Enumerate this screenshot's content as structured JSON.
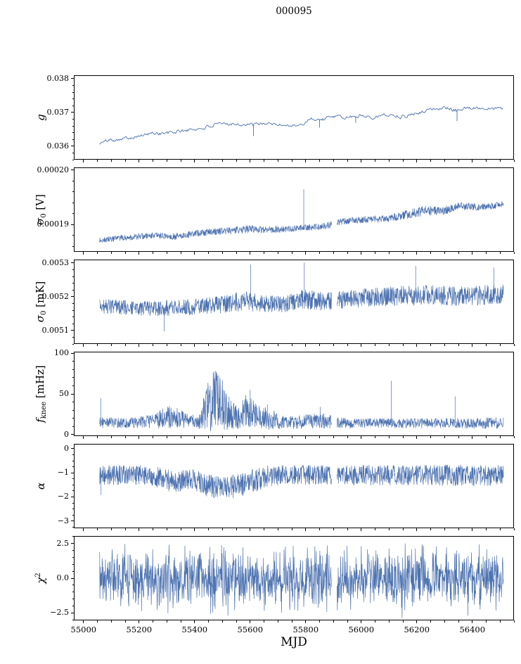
{
  "title": "000095",
  "accent_color": "#4c72b0",
  "axis_color": "#000000",
  "chart_data": {
    "type": "line",
    "title": "000095",
    "legend": "none",
    "grid": false,
    "x_axis": {
      "label": "MJD",
      "lim": [
        54965,
        56550
      ],
      "ticks": [
        55000,
        55200,
        55400,
        55600,
        55800,
        56000,
        56200,
        56400
      ],
      "tick_labels": [
        "55000",
        "55200",
        "55400",
        "55600",
        "55800",
        "56000",
        "56200",
        "56400"
      ],
      "minor_step": 50,
      "data_range": [
        55058,
        56512
      ]
    },
    "panels": [
      {
        "id": "g",
        "ylabel": {
          "sym": "g",
          "sub": "",
          "sup": "",
          "unit": ""
        },
        "ylim": [
          0.0356,
          0.0381
        ],
        "yticks": [
          {
            "v": 0.038,
            "label": "0.038"
          },
          {
            "v": 0.037,
            "label": "0.037"
          },
          {
            "v": 0.036,
            "label": "0.036"
          }
        ],
        "yminor_step": 0.0002,
        "style": {
          "noise": "walk",
          "step": 3,
          "linewidth": 0.9,
          "seed": 101
        },
        "envelope": [
          [
            55058,
            0.03608,
            5e-05
          ],
          [
            55090,
            0.03618,
            6e-05
          ],
          [
            55140,
            0.03623,
            5e-05
          ],
          [
            55200,
            0.0363,
            5e-05
          ],
          [
            55260,
            0.0364,
            7e-05
          ],
          [
            55300,
            0.03637,
            8e-05
          ],
          [
            55350,
            0.03645,
            6e-05
          ],
          [
            55420,
            0.03652,
            6e-05
          ],
          [
            55480,
            0.03663,
            6e-05
          ],
          [
            55530,
            0.03668,
            6e-05
          ],
          [
            55575,
            0.03664,
            6e-05
          ],
          [
            55615,
            0.03662,
            7e-05
          ],
          [
            55655,
            0.03668,
            5e-05
          ],
          [
            55700,
            0.03664,
            5e-05
          ],
          [
            55745,
            0.03662,
            5e-05
          ],
          [
            55785,
            0.0366,
            7e-05
          ],
          [
            55815,
            0.03683,
            6e-05
          ],
          [
            55855,
            0.03678,
            7e-05
          ],
          [
            55895,
            0.03688,
            5e-05
          ],
          [
            55945,
            0.03684,
            6e-05
          ],
          [
            56000,
            0.03691,
            6e-05
          ],
          [
            56050,
            0.03687,
            7e-05
          ],
          [
            56100,
            0.03694,
            6e-05
          ],
          [
            56150,
            0.03687,
            7e-05
          ],
          [
            56200,
            0.03699,
            6e-05
          ],
          [
            56255,
            0.03709,
            5e-05
          ],
          [
            56300,
            0.03716,
            6e-05
          ],
          [
            56335,
            0.03704,
            8e-05
          ],
          [
            56375,
            0.03712,
            6e-05
          ],
          [
            56430,
            0.03714,
            5e-05
          ],
          [
            56512,
            0.03711,
            5e-05
          ]
        ],
        "spikes": [
          [
            55612,
            0.0363
          ],
          [
            55850,
            0.03655
          ],
          [
            55980,
            0.03669
          ],
          [
            56345,
            0.03674
          ]
        ],
        "gaps": []
      },
      {
        "id": "sigma0-V",
        "ylabel": {
          "sym": "σ",
          "sub": "0",
          "sup": "",
          "unit": " [V]"
        },
        "ylim": [
          0.000185,
          0.0002005
        ],
        "yticks": [
          {
            "v": 0.0002,
            "label": "0.00020"
          },
          {
            "v": 0.00019,
            "label": "0.00019"
          }
        ],
        "yminor_step": 2e-06,
        "style": {
          "noise": "uniform",
          "step": 1,
          "linewidth": 0.7,
          "seed": 202
        },
        "envelope": [
          [
            55058,
            0.0001871,
            5e-07
          ],
          [
            55150,
            0.0001876,
            5.5e-07
          ],
          [
            55250,
            0.000188,
            5.5e-07
          ],
          [
            55330,
            0.0001878,
            6e-07
          ],
          [
            55420,
            0.0001885,
            6e-07
          ],
          [
            55520,
            0.0001889,
            6.5e-07
          ],
          [
            55600,
            0.0001892,
            7e-07
          ],
          [
            55700,
            0.0001891,
            6e-07
          ],
          [
            55800,
            0.0001894,
            6e-07
          ],
          [
            55870,
            0.0001897,
            6e-07
          ],
          [
            55930,
            0.0001906,
            6e-07
          ],
          [
            56010,
            0.0001909,
            6e-07
          ],
          [
            56090,
            0.0001911,
            7e-07
          ],
          [
            56160,
            0.0001918,
            8e-07
          ],
          [
            56230,
            0.0001926,
            9e-07
          ],
          [
            56290,
            0.0001925,
            8e-07
          ],
          [
            56355,
            0.0001934,
            7e-07
          ],
          [
            56430,
            0.0001932,
            6e-07
          ],
          [
            56512,
            0.0001937,
            6e-07
          ]
        ],
        "spikes": [
          [
            55793,
            0.0001965
          ]
        ],
        "gaps": [
          [
            55894,
            55912
          ]
        ]
      },
      {
        "id": "sigma0-mK",
        "ylabel": {
          "sym": "σ",
          "sub": "0",
          "sup": "",
          "unit": " [mK]"
        },
        "ylim": [
          0.00506,
          0.00531
        ],
        "yticks": [
          {
            "v": 0.0053,
            "label": "0.0053"
          },
          {
            "v": 0.0052,
            "label": "0.0052"
          },
          {
            "v": 0.0051,
            "label": "0.0051"
          }
        ],
        "yminor_step": 2e-05,
        "style": {
          "noise": "uniform",
          "step": 1,
          "linewidth": 0.7,
          "seed": 303
        },
        "envelope": [
          [
            55058,
            0.005172,
            2.2e-05
          ],
          [
            55150,
            0.005168,
            2.2e-05
          ],
          [
            55240,
            0.005164,
            2.2e-05
          ],
          [
            55330,
            0.005168,
            2.3e-05
          ],
          [
            55420,
            0.005171,
            2.4e-05
          ],
          [
            55510,
            0.005178,
            2.6e-05
          ],
          [
            55580,
            0.005188,
            3e-05
          ],
          [
            55640,
            0.00518,
            2.5e-05
          ],
          [
            55720,
            0.005178,
            2.4e-05
          ],
          [
            55790,
            0.005194,
            3e-05
          ],
          [
            55860,
            0.005186,
            2.7e-05
          ],
          [
            55930,
            0.00519,
            2.7e-05
          ],
          [
            56010,
            0.005197,
            2.8e-05
          ],
          [
            56090,
            0.0052,
            2.9e-05
          ],
          [
            56170,
            0.005203,
            3e-05
          ],
          [
            56240,
            0.005205,
            3e-05
          ],
          [
            56310,
            0.005203,
            2.9e-05
          ],
          [
            56380,
            0.005201,
            2.9e-05
          ],
          [
            56450,
            0.005205,
            2.9e-05
          ],
          [
            56512,
            0.005207,
            2.8e-05
          ]
        ],
        "spikes": [
          [
            55290,
            0.005097
          ],
          [
            55602,
            0.005296
          ],
          [
            55795,
            0.005301
          ],
          [
            56196,
            0.005291
          ],
          [
            56478,
            0.005286
          ]
        ],
        "gaps": [
          [
            55894,
            55912
          ]
        ]
      },
      {
        "id": "fknee",
        "ylabel": {
          "sym": "f",
          "sub": "knee",
          "sup": "",
          "unit": " [mHz]"
        },
        "ylim": [
          -2,
          102
        ],
        "yticks": [
          {
            "v": 100,
            "label": "100"
          },
          {
            "v": 50,
            "label": "50"
          },
          {
            "v": 0,
            "label": "0"
          }
        ],
        "yminor_step": 10,
        "style": {
          "noise": "uniform",
          "step": 1,
          "linewidth": 0.7,
          "seed": 404,
          "clamp_min": 4
        },
        "envelope": [
          [
            55058,
            15,
            7
          ],
          [
            55150,
            14,
            6
          ],
          [
            55240,
            16,
            8
          ],
          [
            55290,
            20,
            13
          ],
          [
            55330,
            22,
            15
          ],
          [
            55370,
            17,
            9
          ],
          [
            55415,
            15,
            8
          ],
          [
            55440,
            32,
            26
          ],
          [
            55465,
            42,
            40
          ],
          [
            55495,
            38,
            33
          ],
          [
            55520,
            28,
            22
          ],
          [
            55550,
            21,
            14
          ],
          [
            55580,
            27,
            22
          ],
          [
            55610,
            24,
            19
          ],
          [
            55640,
            19,
            13
          ],
          [
            55670,
            20,
            15
          ],
          [
            55705,
            15,
            8
          ],
          [
            55760,
            15,
            8
          ],
          [
            55815,
            16,
            9
          ],
          [
            55860,
            17,
            10
          ],
          [
            55905,
            15,
            7
          ],
          [
            55970,
            14,
            6
          ],
          [
            56040,
            14,
            6
          ],
          [
            56110,
            14,
            6
          ],
          [
            56190,
            14,
            6
          ],
          [
            56265,
            14,
            6
          ],
          [
            56340,
            14,
            6
          ],
          [
            56420,
            14,
            7
          ],
          [
            56512,
            14,
            7
          ]
        ],
        "spikes": [
          [
            55062,
            45
          ],
          [
            55600,
            55
          ],
          [
            55662,
            37
          ],
          [
            55852,
            34
          ],
          [
            56108,
            66
          ],
          [
            56338,
            47
          ]
        ],
        "gaps": [
          [
            55894,
            55912
          ]
        ]
      },
      {
        "id": "alpha",
        "ylabel": {
          "sym": "α",
          "sub": "",
          "sup": "",
          "unit": ""
        },
        "ylim": [
          -3.3,
          0.2
        ],
        "yticks": [
          {
            "v": 0,
            "label": "0"
          },
          {
            "v": -1,
            "label": "−1"
          },
          {
            "v": -2,
            "label": "−2"
          },
          {
            "v": -3,
            "label": "−3"
          }
        ],
        "yminor_step": 0.25,
        "style": {
          "noise": "uniform",
          "step": 1,
          "linewidth": 0.7,
          "seed": 505
        },
        "envelope": [
          [
            55058,
            -1.1,
            0.42
          ],
          [
            55160,
            -1.1,
            0.42
          ],
          [
            55250,
            -1.12,
            0.42
          ],
          [
            55300,
            -1.32,
            0.45
          ],
          [
            55345,
            -1.38,
            0.46
          ],
          [
            55385,
            -1.22,
            0.43
          ],
          [
            55425,
            -1.42,
            0.47
          ],
          [
            55465,
            -1.58,
            0.48
          ],
          [
            55505,
            -1.62,
            0.48
          ],
          [
            55545,
            -1.55,
            0.48
          ],
          [
            55585,
            -1.42,
            0.5
          ],
          [
            55625,
            -1.3,
            0.49
          ],
          [
            55665,
            -1.14,
            0.45
          ],
          [
            55760,
            -1.08,
            0.42
          ],
          [
            55860,
            -1.1,
            0.42
          ],
          [
            55960,
            -1.1,
            0.42
          ],
          [
            56080,
            -1.1,
            0.42
          ],
          [
            56200,
            -1.1,
            0.43
          ],
          [
            56320,
            -1.1,
            0.44
          ],
          [
            56430,
            -1.1,
            0.44
          ],
          [
            56512,
            -1.1,
            0.43
          ]
        ],
        "spikes": [
          [
            55063,
            -1.92
          ]
        ],
        "gaps": [
          [
            55894,
            55912
          ]
        ]
      },
      {
        "id": "chi2",
        "ylabel": {
          "sym": "χ",
          "sub": "",
          "sup": "2",
          "unit": ""
        },
        "ylim": [
          -3.05,
          3.05
        ],
        "yticks": [
          {
            "v": 2.5,
            "label": "2.5"
          },
          {
            "v": 0,
            "label": "0.0"
          },
          {
            "v": -2.5,
            "label": "−2.5"
          }
        ],
        "yminor_step": 0.5,
        "style": {
          "noise": "gauss",
          "step": 1,
          "linewidth": 0.7,
          "seed": 606
        },
        "envelope": [
          [
            55058,
            0,
            2.15
          ],
          [
            55200,
            0,
            2.2
          ],
          [
            55400,
            0,
            2.25
          ],
          [
            55600,
            0,
            2.2
          ],
          [
            55800,
            0,
            2.2
          ],
          [
            56000,
            0,
            2.15
          ],
          [
            56200,
            0,
            2.2
          ],
          [
            56400,
            0,
            2.2
          ],
          [
            56512,
            0,
            2.1
          ]
        ],
        "spikes": [],
        "gaps": [
          [
            55894,
            55912
          ]
        ]
      }
    ]
  }
}
